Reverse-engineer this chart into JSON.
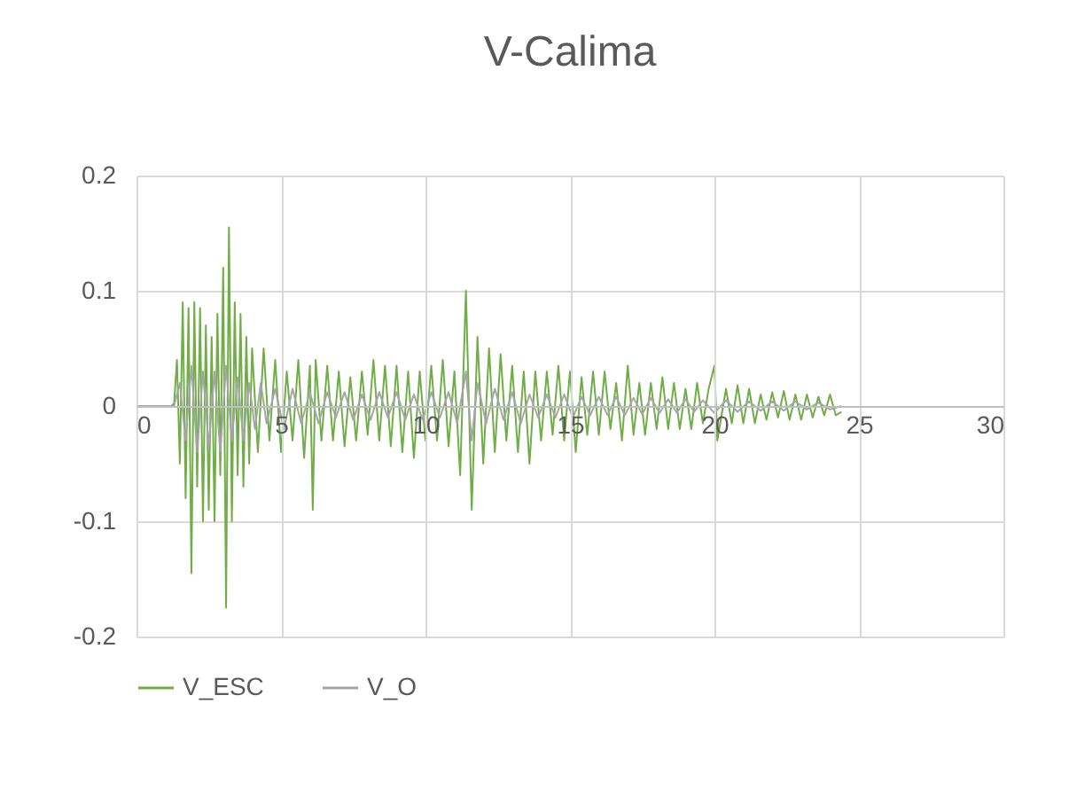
{
  "chart_data": {
    "type": "line",
    "title": "V-Calima",
    "legend": "bottom",
    "grid": true,
    "xlim": [
      0,
      30
    ],
    "xticks": [
      0,
      5,
      10,
      15,
      20,
      25,
      30
    ],
    "ylim": [
      -0.2,
      0.2
    ],
    "yticks": [
      -0.2,
      -0.1,
      0,
      0.1,
      0.2
    ],
    "series": [
      {
        "name": "V_ESC",
        "color": "#70ad47",
        "x": [
          0,
          1.2,
          1.3,
          1.4,
          1.5,
          1.6,
          1.7,
          1.8,
          1.9,
          2.0,
          2.1,
          2.2,
          2.3,
          2.4,
          2.5,
          2.6,
          2.7,
          2.8,
          2.9,
          3.0,
          3.1,
          3.2,
          3.3,
          3.4,
          3.5,
          3.6,
          3.7,
          3.8,
          3.9,
          4.0,
          4.2,
          4.4,
          4.6,
          4.8,
          5.0,
          5.2,
          5.4,
          5.6,
          5.8,
          6.0,
          6.1,
          6.2,
          6.4,
          6.6,
          6.8,
          7.0,
          7.2,
          7.4,
          7.6,
          7.8,
          8.0,
          8.2,
          8.4,
          8.6,
          8.8,
          9.0,
          9.2,
          9.4,
          9.6,
          9.8,
          10.0,
          10.2,
          10.4,
          10.6,
          10.8,
          11.0,
          11.2,
          11.4,
          11.6,
          11.8,
          12.0,
          12.2,
          12.4,
          12.6,
          12.8,
          13.0,
          13.2,
          13.4,
          13.6,
          13.8,
          14.0,
          14.2,
          14.4,
          14.6,
          14.8,
          15.0,
          15.2,
          15.4,
          15.6,
          15.8,
          16.0,
          16.2,
          16.4,
          16.6,
          16.8,
          17.0,
          17.2,
          17.4,
          17.6,
          17.8,
          18.0,
          18.2,
          18.4,
          18.6,
          18.8,
          19.0,
          19.2,
          19.4,
          19.6,
          19.8,
          20.0,
          20.1,
          20.4,
          20.6,
          20.8,
          21.0,
          21.2,
          21.4,
          21.6,
          21.8,
          22.0,
          22.2,
          22.4,
          22.6,
          22.8,
          23.0,
          23.2,
          23.4,
          23.6,
          23.8,
          24.0,
          24.2,
          24.4
        ],
        "values": [
          0,
          0,
          0.002,
          0.04,
          -0.05,
          0.09,
          -0.08,
          0.085,
          -0.145,
          0.09,
          -0.07,
          0.085,
          -0.1,
          0.07,
          -0.09,
          0.06,
          -0.1,
          0.08,
          -0.06,
          0.12,
          -0.175,
          0.155,
          -0.1,
          0.09,
          -0.06,
          0.08,
          -0.07,
          0.06,
          -0.05,
          0.05,
          -0.04,
          0.05,
          -0.03,
          0.04,
          -0.04,
          0.03,
          -0.03,
          0.04,
          -0.045,
          0.035,
          -0.09,
          0.04,
          -0.03,
          0.035,
          -0.03,
          0.03,
          -0.035,
          0.025,
          -0.03,
          0.03,
          -0.025,
          0.04,
          -0.03,
          0.035,
          -0.035,
          0.035,
          -0.04,
          0.03,
          -0.045,
          0.03,
          -0.03,
          0.035,
          -0.03,
          0.04,
          -0.035,
          0.03,
          -0.06,
          0.1,
          -0.09,
          0.06,
          -0.05,
          0.05,
          -0.04,
          0.045,
          -0.03,
          0.035,
          -0.04,
          0.03,
          -0.05,
          0.03,
          -0.03,
          0.03,
          -0.025,
          0.035,
          -0.03,
          0.03,
          -0.04,
          0.025,
          -0.025,
          0.03,
          -0.025,
          0.03,
          -0.02,
          0.02,
          -0.03,
          0.035,
          -0.025,
          0.02,
          -0.025,
          0.02,
          -0.02,
          0.025,
          -0.02,
          0.02,
          -0.02,
          0.015,
          -0.02,
          0.02,
          -0.015,
          0.015,
          0.035,
          -0.03,
          0.015,
          -0.015,
          0.018,
          -0.015,
          0.015,
          -0.015,
          0.01,
          -0.012,
          0.012,
          -0.01,
          0.013,
          -0.012,
          0.01,
          -0.012,
          0.01,
          -0.01,
          0.008,
          -0.008,
          0.01,
          -0.008,
          -0.005
        ]
      },
      {
        "name": "V_O",
        "color": "#a5a5a5",
        "x": [
          0,
          1.3,
          1.5,
          1.7,
          1.9,
          2.1,
          2.3,
          2.5,
          2.7,
          2.9,
          3.1,
          3.3,
          3.5,
          3.7,
          3.9,
          4.1,
          4.3,
          4.5,
          4.8,
          5.1,
          5.4,
          5.7,
          6.0,
          6.3,
          6.6,
          6.9,
          7.2,
          7.5,
          7.8,
          8.1,
          8.4,
          8.7,
          9.0,
          9.3,
          9.6,
          9.9,
          10.2,
          10.5,
          10.8,
          11.1,
          11.4,
          11.6,
          11.8,
          12.1,
          12.4,
          12.7,
          13.0,
          13.3,
          13.6,
          13.9,
          14.2,
          14.5,
          14.8,
          15.1,
          15.4,
          15.7,
          16.0,
          16.3,
          16.6,
          16.9,
          17.2,
          17.5,
          17.8,
          18.1,
          18.4,
          18.7,
          19.0,
          19.3,
          19.6,
          20.0,
          20.4,
          20.8,
          21.2,
          21.6,
          22.0,
          22.4,
          22.8,
          23.2,
          23.6,
          24.0,
          24.4
        ],
        "values": [
          0,
          0,
          0.02,
          -0.03,
          0.035,
          -0.04,
          0.03,
          -0.035,
          0.03,
          -0.04,
          0.035,
          -0.03,
          0.025,
          -0.03,
          0.02,
          -0.02,
          0.02,
          -0.015,
          0.015,
          -0.02,
          0.015,
          -0.015,
          0.012,
          -0.015,
          0.012,
          -0.01,
          0.012,
          -0.012,
          0.01,
          -0.012,
          0.012,
          -0.01,
          0.012,
          -0.012,
          0.01,
          -0.012,
          0.012,
          -0.01,
          0.012,
          -0.015,
          0.03,
          -0.03,
          0.02,
          -0.015,
          0.015,
          -0.012,
          0.012,
          -0.015,
          0.01,
          -0.01,
          0.01,
          -0.01,
          0.01,
          -0.01,
          0.008,
          -0.008,
          0.008,
          -0.008,
          0.008,
          -0.008,
          0.007,
          -0.007,
          0.007,
          -0.006,
          0.006,
          -0.006,
          0.006,
          -0.005,
          0.005,
          -0.006,
          0.005,
          -0.005,
          0.004,
          -0.004,
          0.004,
          -0.004,
          0.004,
          -0.003,
          0.003,
          -0.003,
          0
        ]
      }
    ]
  }
}
